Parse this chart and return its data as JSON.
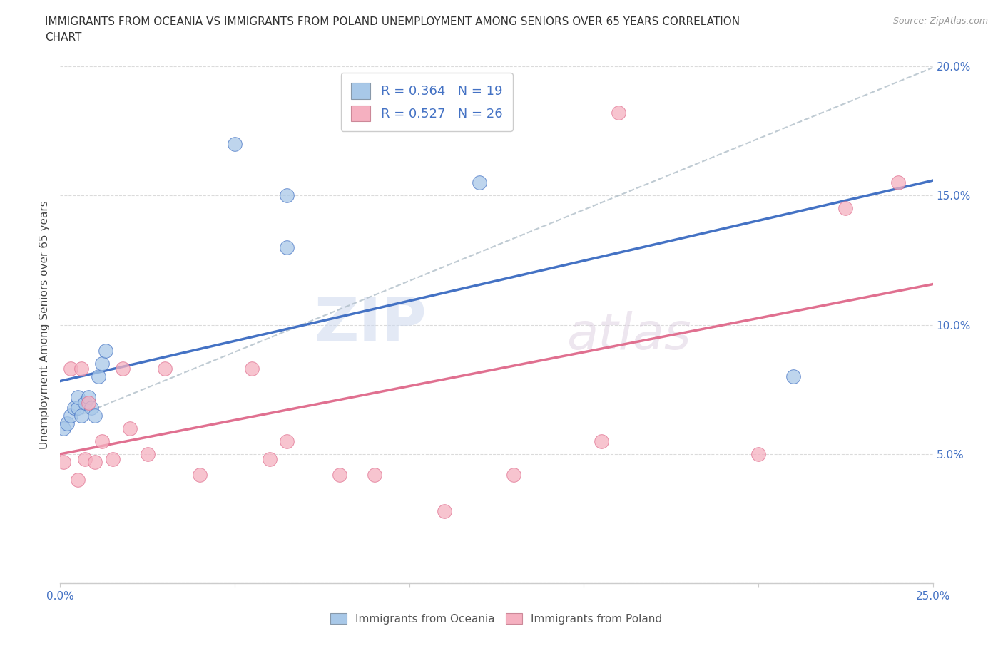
{
  "title_line1": "IMMIGRANTS FROM OCEANIA VS IMMIGRANTS FROM POLAND UNEMPLOYMENT AMONG SENIORS OVER 65 YEARS CORRELATION",
  "title_line2": "CHART",
  "source": "Source: ZipAtlas.com",
  "ylabel": "Unemployment Among Seniors over 65 years",
  "xlabel_oceania": "Immigrants from Oceania",
  "xlabel_poland": "Immigrants from Poland",
  "xlim": [
    0.0,
    0.25
  ],
  "ylim": [
    0.0,
    0.2
  ],
  "legend_r_oceania": "0.364",
  "legend_n_oceania": "19",
  "legend_r_poland": "0.527",
  "legend_n_poland": "26",
  "oceania_color": "#a8c8e8",
  "poland_color": "#f5b0c0",
  "trendline_oceania_color": "#4472c4",
  "trendline_poland_color": "#e07090",
  "trendline_dashed_color": "#b0bec8",
  "watermark_text": "ZIP",
  "watermark_text2": "atlas",
  "oceania_x": [
    0.001,
    0.002,
    0.003,
    0.004,
    0.005,
    0.005,
    0.006,
    0.007,
    0.008,
    0.009,
    0.01,
    0.011,
    0.012,
    0.013,
    0.05,
    0.065,
    0.065,
    0.12,
    0.21
  ],
  "oceania_y": [
    0.06,
    0.062,
    0.065,
    0.068,
    0.068,
    0.072,
    0.065,
    0.07,
    0.072,
    0.068,
    0.065,
    0.08,
    0.085,
    0.09,
    0.17,
    0.15,
    0.13,
    0.155,
    0.08
  ],
  "poland_x": [
    0.001,
    0.003,
    0.005,
    0.006,
    0.007,
    0.008,
    0.01,
    0.012,
    0.015,
    0.018,
    0.02,
    0.025,
    0.03,
    0.04,
    0.055,
    0.06,
    0.065,
    0.08,
    0.09,
    0.11,
    0.13,
    0.155,
    0.16,
    0.2,
    0.225,
    0.24
  ],
  "poland_y": [
    0.047,
    0.083,
    0.04,
    0.083,
    0.048,
    0.07,
    0.047,
    0.055,
    0.048,
    0.083,
    0.06,
    0.05,
    0.083,
    0.042,
    0.083,
    0.048,
    0.055,
    0.042,
    0.042,
    0.028,
    0.042,
    0.055,
    0.182,
    0.05,
    0.145,
    0.155
  ],
  "bg_color": "#ffffff",
  "tick_color": "#4472c4",
  "axis_color": "#cccccc",
  "grid_color": "#cccccc",
  "title_fontsize": 11,
  "tick_fontsize": 11,
  "ylabel_fontsize": 11
}
